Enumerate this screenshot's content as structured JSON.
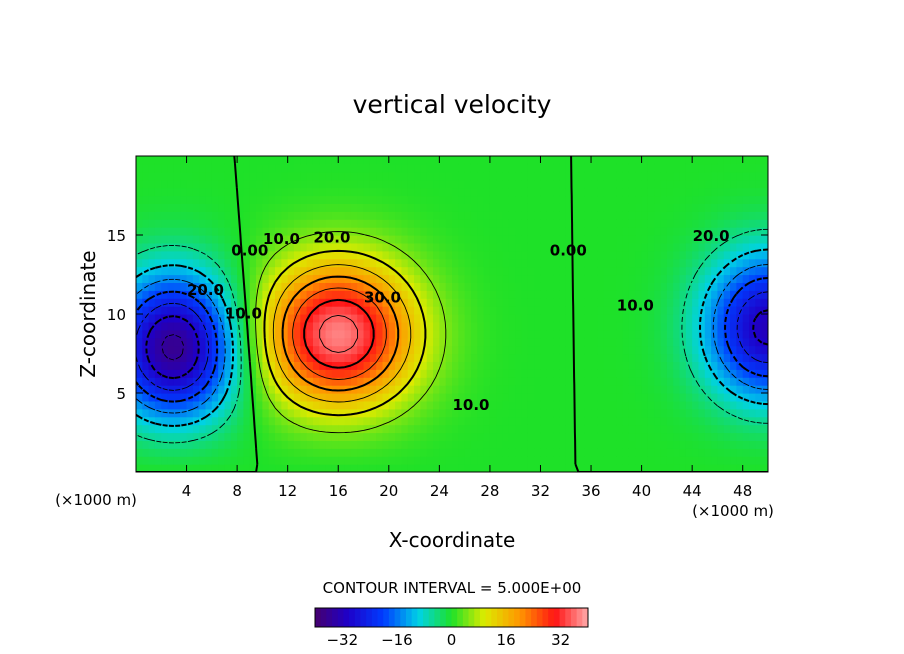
{
  "chart_data": {
    "type": "heatmap",
    "title": "vertical velocity",
    "xlabel": "X-coordinate",
    "ylabel": "Z-coordinate",
    "x_unit_label": "(×1000 m)",
    "y_unit_label": "(×1000 m)",
    "xlim": [
      0,
      50
    ],
    "ylim": [
      0,
      20
    ],
    "xticks": [
      4,
      8,
      12,
      16,
      20,
      24,
      28,
      32,
      36,
      40,
      44,
      48
    ],
    "yticks": [
      5,
      10,
      15
    ],
    "contour_interval_text": "CONTOUR INTERVAL = 5.000E+00",
    "contour_interval": 5.0,
    "contour_labels": [
      {
        "text": "0.00",
        "x": 9.0,
        "z": 14.0
      },
      {
        "text": "10.0",
        "x": 11.5,
        "z": 14.7
      },
      {
        "text": "20.0",
        "x": 15.5,
        "z": 14.8
      },
      {
        "text": "30.0",
        "x": 19.5,
        "z": 11.0
      },
      {
        "text": "10.0",
        "x": 26.5,
        "z": 4.2
      },
      {
        "text": "0.00",
        "x": 34.2,
        "z": 14.0
      },
      {
        "text": "10.0",
        "x": 39.5,
        "z": 10.5
      },
      {
        "text": "20.0",
        "x": 45.5,
        "z": 14.9
      },
      {
        "text": "20.0",
        "x": 5.5,
        "z": 11.5
      },
      {
        "text": "10.0",
        "x": 8.5,
        "z": 10.0
      }
    ],
    "field_extrema": [
      {
        "kind": "min",
        "x": 3.0,
        "z": 7.5,
        "value": -38
      },
      {
        "kind": "max",
        "x": 16.0,
        "z": 8.5,
        "value": 38
      },
      {
        "kind": "min",
        "x": 50.0,
        "z": 9.0,
        "value": -32
      }
    ],
    "colorbar": {
      "min": -40,
      "max": 40,
      "ticks": [
        -32,
        -16,
        0,
        16,
        32
      ],
      "tick_labels": [
        "−32",
        "−16",
        "0",
        "16",
        "32"
      ]
    }
  }
}
